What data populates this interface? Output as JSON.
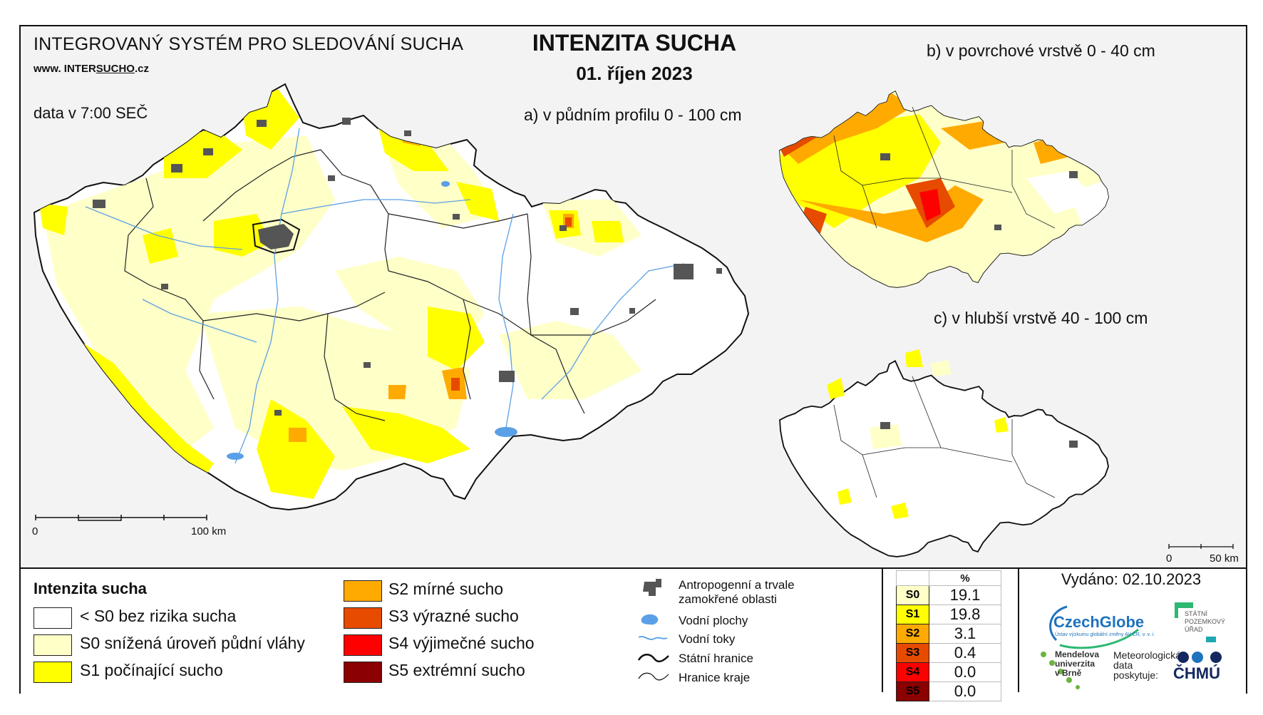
{
  "header": {
    "system_title": "INTEGROVANÝ SYSTÉM PRO SLEDOVÁNÍ SUCHA",
    "website_prefix": "www. INTER",
    "website_underlined": "SUCHO",
    "website_suffix": ".cz",
    "data_time": "data v 7:00 SEČ",
    "main_title": "INTENZITA SUCHA",
    "date": "01. říjen 2023"
  },
  "maps": {
    "a_caption": "a) v půdním profilu 0 - 100 cm",
    "b_caption": "b) v povrchové vrstvě 0 - 40 cm",
    "c_caption": "c) v hlubší vrstvě 40 - 100 cm",
    "scale_main": {
      "start": "0",
      "end": "100 km"
    },
    "scale_small": {
      "start": "0",
      "end": "50 km"
    }
  },
  "legend": {
    "title": "Intenzita sucha",
    "classes": [
      {
        "label": "< S0 bez rizika sucha",
        "color": "#ffffff"
      },
      {
        "label": "S0 snížená úroveň půdní vláhy",
        "color": "#ffffc8"
      },
      {
        "label": "S1 počínající sucho",
        "color": "#ffff00"
      },
      {
        "label": "S2 mírné sucho",
        "color": "#ffaa00"
      },
      {
        "label": "S3 výrazné sucho",
        "color": "#e64b00"
      },
      {
        "label": "S4 výjimečné sucho",
        "color": "#ff0000"
      },
      {
        "label": "S5 extrémní sucho",
        "color": "#8b0000"
      }
    ],
    "symbols": [
      {
        "label_line1": "Antropogenní a trvale",
        "label_line2": "zamokřené oblasti",
        "icon": "urban-area-icon"
      },
      {
        "label": "Vodní plochy",
        "icon": "water-body-icon"
      },
      {
        "label": "Vodní toky",
        "icon": "river-icon"
      },
      {
        "label": "Státní hranice",
        "icon": "state-border-icon"
      },
      {
        "label": "Hranice kraje",
        "icon": "region-border-icon"
      }
    ]
  },
  "stats": {
    "unit": "%",
    "rows": [
      {
        "code": "S0",
        "value": "19.1",
        "color": "#ffffc8",
        "text_color": "#000000"
      },
      {
        "code": "S1",
        "value": "19.8",
        "color": "#ffff00",
        "text_color": "#000000"
      },
      {
        "code": "S2",
        "value": "3.1",
        "color": "#ffaa00",
        "text_color": "#000000"
      },
      {
        "code": "S3",
        "value": "0.4",
        "color": "#e64b00",
        "text_color": "#000000"
      },
      {
        "code": "S4",
        "value": "0.0",
        "color": "#ff0000",
        "text_color": "#000000"
      },
      {
        "code": "S5",
        "value": "0.0",
        "color": "#8b0000",
        "text_color": "#000000"
      }
    ]
  },
  "footer": {
    "issued": "Vydáno: 02.10.2023",
    "czechglobe": "CzechGlobe",
    "czechglobe_sub": "Ústav výzkumu globální změny AV ČR, v. v. i.",
    "spu_line1": "STÁTNÍ",
    "spu_line2": "POZEMKOVÝ",
    "spu_line3": "ÚŘAD",
    "mendel_line1": "Mendelova",
    "mendel_line2": "univerzita",
    "mendel_line3": "v Brně",
    "meteo_line1": "Meteorologická",
    "meteo_line2": "data",
    "meteo_line3": "poskytuje:",
    "chmu": "ČHMÚ"
  }
}
